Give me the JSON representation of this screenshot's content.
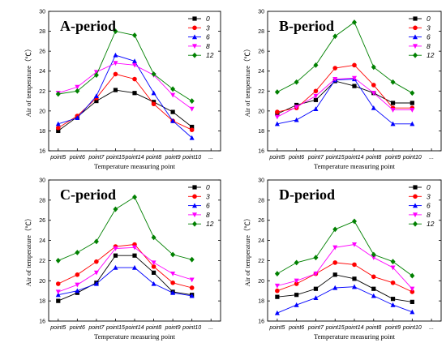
{
  "markers": {
    "0": "square",
    "3": "circle",
    "6": "triangle-up",
    "8": "triangle-down",
    "12": "diamond"
  },
  "chart_data": [
    {
      "type": "line",
      "title": "A-period",
      "xlabel": "Temperature measuring point",
      "ylabel": "Air of temperature（℃）",
      "categories": [
        "point5",
        "point6",
        "point7",
        "point15",
        "point14",
        "point8",
        "point9",
        "point10"
      ],
      "extra_tick": "...",
      "ylim": [
        16,
        30
      ],
      "yticks": [
        16,
        18,
        20,
        22,
        24,
        26,
        28,
        30
      ],
      "legend_position": "top-right",
      "series": [
        {
          "name": "0",
          "color": "#000000",
          "values": [
            18.0,
            19.4,
            21.0,
            22.1,
            21.8,
            20.9,
            19.9,
            18.4
          ]
        },
        {
          "name": "3",
          "color": "#ff0000",
          "values": [
            18.3,
            19.5,
            21.3,
            23.7,
            23.2,
            20.7,
            19.0,
            18.1
          ]
        },
        {
          "name": "6",
          "color": "#0000ff",
          "values": [
            18.7,
            19.3,
            21.5,
            25.6,
            25.0,
            21.8,
            19.0,
            17.3
          ]
        },
        {
          "name": "8",
          "color": "#ff00ff",
          "values": [
            21.8,
            22.4,
            23.9,
            24.8,
            24.6,
            23.6,
            21.6,
            20.2
          ]
        },
        {
          "name": "12",
          "color": "#008000",
          "values": [
            21.7,
            22.0,
            23.6,
            28.0,
            27.6,
            23.7,
            22.2,
            21.0
          ]
        }
      ]
    },
    {
      "type": "line",
      "title": "B-period",
      "xlabel": "Temperature measuring point",
      "ylabel": "Air of temperature（℃）",
      "categories": [
        "point5",
        "point6",
        "point7",
        "point15",
        "point14",
        "point8",
        "point9",
        "point10"
      ],
      "extra_tick": "...",
      "ylim": [
        16,
        30
      ],
      "yticks": [
        16,
        18,
        20,
        22,
        24,
        26,
        28,
        30
      ],
      "legend_position": "top-right",
      "series": [
        {
          "name": "0",
          "color": "#000000",
          "values": [
            19.7,
            20.6,
            21.1,
            23.0,
            22.5,
            21.8,
            20.8,
            20.8
          ]
        },
        {
          "name": "3",
          "color": "#ff0000",
          "values": [
            19.9,
            20.3,
            22.0,
            24.3,
            24.6,
            22.6,
            20.3,
            20.3
          ]
        },
        {
          "name": "6",
          "color": "#0000ff",
          "values": [
            18.7,
            19.1,
            20.2,
            23.1,
            23.2,
            20.3,
            18.7,
            18.7
          ]
        },
        {
          "name": "8",
          "color": "#ff00ff",
          "values": [
            19.4,
            20.4,
            21.5,
            23.2,
            23.3,
            21.8,
            20.1,
            20.1
          ]
        },
        {
          "name": "12",
          "color": "#008000",
          "values": [
            21.9,
            22.9,
            24.6,
            27.5,
            28.9,
            24.4,
            22.9,
            21.8
          ]
        }
      ]
    },
    {
      "type": "line",
      "title": "C-period",
      "xlabel": "Temperature measuring point",
      "ylabel": "Air of temperature（℃）",
      "categories": [
        "point5",
        "point6",
        "point7",
        "point15",
        "point14",
        "point8",
        "point9",
        "point10"
      ],
      "extra_tick": "...",
      "ylim": [
        16,
        30
      ],
      "yticks": [
        16,
        18,
        20,
        22,
        24,
        26,
        28,
        30
      ],
      "legend_position": "top-right",
      "series": [
        {
          "name": "0",
          "color": "#000000",
          "values": [
            18.0,
            18.8,
            19.8,
            22.5,
            22.5,
            20.8,
            18.9,
            18.6
          ]
        },
        {
          "name": "3",
          "color": "#ff0000",
          "values": [
            19.7,
            20.6,
            21.9,
            23.4,
            23.6,
            21.4,
            19.8,
            19.3
          ]
        },
        {
          "name": "6",
          "color": "#0000ff",
          "values": [
            18.6,
            19.0,
            19.7,
            21.3,
            21.3,
            19.7,
            18.8,
            18.5
          ]
        },
        {
          "name": "8",
          "color": "#ff00ff",
          "values": [
            18.9,
            19.6,
            20.8,
            23.2,
            23.3,
            21.8,
            20.7,
            20.1
          ]
        },
        {
          "name": "12",
          "color": "#008000",
          "values": [
            22.0,
            22.8,
            23.9,
            27.1,
            28.3,
            24.3,
            22.6,
            22.1
          ]
        }
      ]
    },
    {
      "type": "line",
      "title": "D-period",
      "xlabel": "Temperature measuring point",
      "ylabel": "Air of temperature（℃）",
      "categories": [
        "point5",
        "point6",
        "point7",
        "point15",
        "point14",
        "point8",
        "point9",
        "point10"
      ],
      "extra_tick": "...",
      "ylim": [
        16,
        30
      ],
      "yticks": [
        16,
        18,
        20,
        22,
        24,
        26,
        28,
        30
      ],
      "legend_position": "top-right",
      "series": [
        {
          "name": "0",
          "color": "#000000",
          "values": [
            18.4,
            18.6,
            19.2,
            20.6,
            20.2,
            19.2,
            18.2,
            17.9
          ]
        },
        {
          "name": "3",
          "color": "#ff0000",
          "values": [
            19.0,
            19.7,
            20.7,
            21.8,
            21.6,
            20.4,
            19.8,
            18.9
          ]
        },
        {
          "name": "6",
          "color": "#0000ff",
          "values": [
            16.8,
            17.6,
            18.3,
            19.3,
            19.4,
            18.5,
            17.6,
            16.9
          ]
        },
        {
          "name": "8",
          "color": "#ff00ff",
          "values": [
            19.5,
            20.0,
            20.7,
            23.3,
            23.6,
            22.3,
            21.3,
            19.2
          ]
        },
        {
          "name": "12",
          "color": "#008000",
          "values": [
            20.7,
            21.8,
            22.3,
            25.1,
            25.9,
            22.6,
            21.9,
            20.5
          ]
        }
      ]
    }
  ]
}
